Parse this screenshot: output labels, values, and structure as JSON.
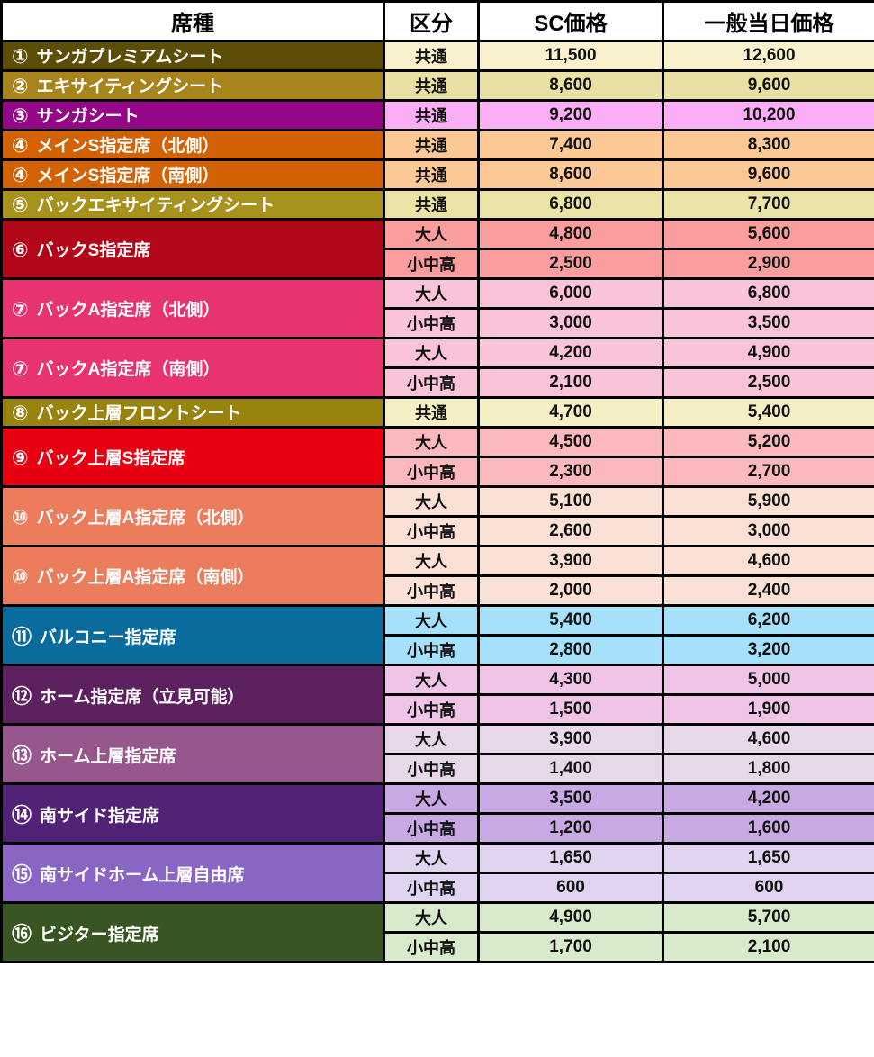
{
  "table": {
    "columns": {
      "seat_type": "席種",
      "category": "区分",
      "sc_price": "SC価格",
      "general_day_price": "一般当日価格"
    },
    "colors": {
      "grid": "#000000",
      "header_bg": "#ffffff",
      "header_text": "#000000",
      "seat_label_text": "#ffffff",
      "price_text": "#111111"
    },
    "rows": [
      {
        "num": "①",
        "name": "サンガプレミアムシート",
        "label_bg": "#5c4d07",
        "cell_bg": "#f8f1cb",
        "tiers": [
          {
            "kubun": "共通",
            "sc": "11,500",
            "general": "12,600"
          }
        ]
      },
      {
        "num": "②",
        "name": "エキサイティングシート",
        "label_bg": "#a8851c",
        "cell_bg": "#e9e0a3",
        "tiers": [
          {
            "kubun": "共通",
            "sc": "8,600",
            "general": "9,600"
          }
        ]
      },
      {
        "num": "③",
        "name": "サンガシート",
        "label_bg": "#940787",
        "cell_bg": "#fbaef5",
        "tiers": [
          {
            "kubun": "共通",
            "sc": "9,200",
            "general": "10,200"
          }
        ]
      },
      {
        "num": "④",
        "name": "メインS指定席（北側）",
        "label_bg": "#d26204",
        "cell_bg": "#fbc896",
        "tiers": [
          {
            "kubun": "共通",
            "sc": "7,400",
            "general": "8,300"
          }
        ]
      },
      {
        "num": "④",
        "name": "メインS指定席（南側）",
        "label_bg": "#d26204",
        "cell_bg": "#fbc896",
        "tiers": [
          {
            "kubun": "共通",
            "sc": "8,600",
            "general": "9,600"
          }
        ]
      },
      {
        "num": "⑤",
        "name": "バックエキサイティングシート",
        "label_bg": "#a8921e",
        "cell_bg": "#eae3a6",
        "tiers": [
          {
            "kubun": "共通",
            "sc": "6,800",
            "general": "7,700"
          }
        ]
      },
      {
        "num": "⑥",
        "name": "バックS指定席",
        "label_bg": "#b10718",
        "cell_bg": "#f99d9e",
        "tiers": [
          {
            "kubun": "大人",
            "sc": "4,800",
            "general": "5,600"
          },
          {
            "kubun": "小中高",
            "sc": "2,500",
            "general": "2,900"
          }
        ]
      },
      {
        "num": "⑦",
        "name": "バックA指定席（北側）",
        "label_bg": "#e73370",
        "cell_bg": "#f9c3d9",
        "tiers": [
          {
            "kubun": "大人",
            "sc": "6,000",
            "general": "6,800"
          },
          {
            "kubun": "小中高",
            "sc": "3,000",
            "general": "3,500"
          }
        ]
      },
      {
        "num": "⑦",
        "name": "バックA指定席（南側）",
        "label_bg": "#e73370",
        "cell_bg": "#f9c3d9",
        "tiers": [
          {
            "kubun": "大人",
            "sc": "4,200",
            "general": "4,900"
          },
          {
            "kubun": "小中高",
            "sc": "2,100",
            "general": "2,500"
          }
        ]
      },
      {
        "num": "⑧",
        "name": "バック上層フロントシート",
        "label_bg": "#98830f",
        "cell_bg": "#f5efc4",
        "tiers": [
          {
            "kubun": "共通",
            "sc": "4,700",
            "general": "5,400"
          }
        ]
      },
      {
        "num": "⑨",
        "name": "バック上層S指定席",
        "label_bg": "#e60012",
        "cell_bg": "#fbb9bd",
        "tiers": [
          {
            "kubun": "大人",
            "sc": "4,500",
            "general": "5,200"
          },
          {
            "kubun": "小中高",
            "sc": "2,300",
            "general": "2,700"
          }
        ]
      },
      {
        "num": "⑩",
        "name": "バック上層A指定席（北側）",
        "label_bg": "#ec7d5c",
        "cell_bg": "#fbe0d5",
        "tiers": [
          {
            "kubun": "大人",
            "sc": "5,100",
            "general": "5,900"
          },
          {
            "kubun": "小中高",
            "sc": "2,600",
            "general": "3,000"
          }
        ]
      },
      {
        "num": "⑩",
        "name": "バック上層A指定席（南側）",
        "label_bg": "#ec7d5c",
        "cell_bg": "#fbe0d5",
        "tiers": [
          {
            "kubun": "大人",
            "sc": "3,900",
            "general": "4,600"
          },
          {
            "kubun": "小中高",
            "sc": "2,000",
            "general": "2,400"
          }
        ]
      },
      {
        "num": "⑪",
        "name": "バルコニー指定席",
        "label_bg": "#0a6b9d",
        "cell_bg": "#a5e1fa",
        "tiers": [
          {
            "kubun": "大人",
            "sc": "5,400",
            "general": "6,200"
          },
          {
            "kubun": "小中高",
            "sc": "2,800",
            "general": "3,200"
          }
        ]
      },
      {
        "num": "⑫",
        "name": "ホーム指定席（立見可能）",
        "label_bg": "#5d2160",
        "cell_bg": "#efc4e7",
        "tiers": [
          {
            "kubun": "大人",
            "sc": "4,300",
            "general": "5,000"
          },
          {
            "kubun": "小中高",
            "sc": "1,500",
            "general": "1,900"
          }
        ]
      },
      {
        "num": "⑬",
        "name": "ホーム上層指定席",
        "label_bg": "#96588c",
        "cell_bg": "#e6d8e9",
        "tiers": [
          {
            "kubun": "大人",
            "sc": "3,900",
            "general": "4,600"
          },
          {
            "kubun": "小中高",
            "sc": "1,400",
            "general": "1,800"
          }
        ]
      },
      {
        "num": "⑭",
        "name": "南サイド指定席",
        "label_bg": "#522277",
        "cell_bg": "#c9a9e3",
        "tiers": [
          {
            "kubun": "大人",
            "sc": "3,500",
            "general": "4,200"
          },
          {
            "kubun": "小中高",
            "sc": "1,200",
            "general": "1,600"
          }
        ]
      },
      {
        "num": "⑮",
        "name": "南サイドホーム上層自由席",
        "label_bg": "#8a66c4",
        "cell_bg": "#e0d4f0",
        "tiers": [
          {
            "kubun": "大人",
            "sc": "1,650",
            "general": "1,650"
          },
          {
            "kubun": "小中高",
            "sc": "600",
            "general": "600"
          }
        ]
      },
      {
        "num": "⑯",
        "name": "ビジター指定席",
        "label_bg": "#395523",
        "cell_bg": "#d9e9cc",
        "tiers": [
          {
            "kubun": "大人",
            "sc": "4,900",
            "general": "5,700"
          },
          {
            "kubun": "小中高",
            "sc": "1,700",
            "general": "2,100"
          }
        ]
      }
    ]
  }
}
